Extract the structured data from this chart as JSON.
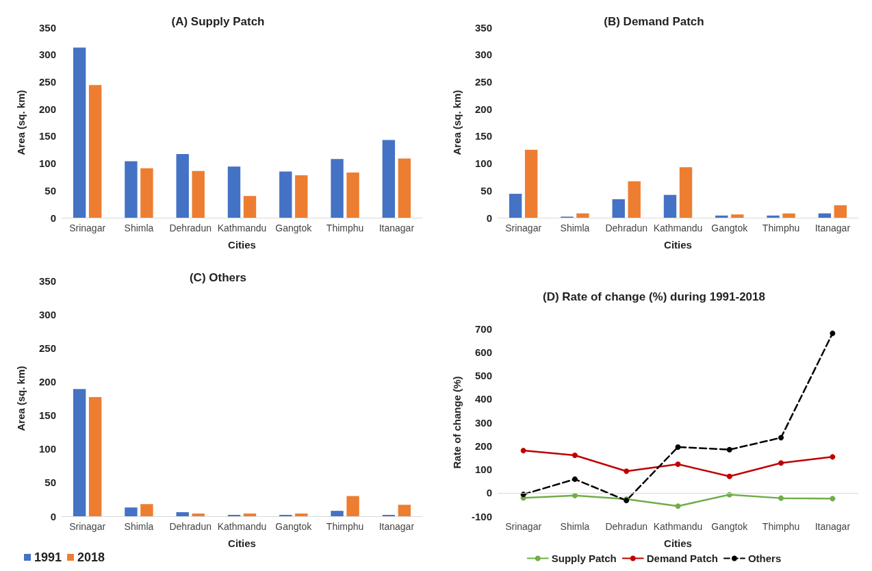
{
  "chart_data": [
    {
      "type": "bar",
      "title": "(A) Supply Patch",
      "xlabel": "Cities",
      "ylabel": "Area (sq. km)",
      "categories": [
        "Srinagar",
        "Shimla",
        "Dehradun",
        "Kathmandu",
        "Gangtok",
        "Thimphu",
        "Itanagar"
      ],
      "series": [
        {
          "color": "#4472c4",
          "values": [
            313,
            104,
            117,
            94,
            85,
            108,
            143
          ]
        },
        {
          "color": "#ed7d31",
          "values": [
            244,
            91,
            86,
            40,
            78,
            83,
            109
          ]
        }
      ],
      "ylim": [
        0,
        350
      ],
      "yticks": [
        0,
        50,
        100,
        150,
        200,
        250,
        300,
        350
      ],
      "grid": false,
      "legend": false
    },
    {
      "type": "bar",
      "title": "(B) Demand Patch",
      "xlabel": "Cities",
      "ylabel": "Area (sq. km)",
      "categories": [
        "Srinagar",
        "Shimla",
        "Dehradun",
        "Kathmandu",
        "Gangtok",
        "Thimphu",
        "Itanagar"
      ],
      "series": [
        {
          "color": "#4472c4",
          "values": [
            44,
            2,
            34,
            42,
            4,
            4,
            8
          ]
        },
        {
          "color": "#ed7d31",
          "values": [
            125,
            8,
            67,
            93,
            6,
            8,
            23
          ]
        }
      ],
      "ylim": [
        0,
        350
      ],
      "yticks": [
        0,
        50,
        100,
        150,
        200,
        250,
        300,
        350
      ],
      "grid": false,
      "legend": false
    },
    {
      "type": "bar",
      "title": "(C) Others",
      "xlabel": "Cities",
      "ylabel": "Area (sq. km)",
      "categories": [
        "Srinagar",
        "Shimla",
        "Dehradun",
        "Kathmandu",
        "Gangtok",
        "Thimphu",
        "Itanagar"
      ],
      "series": [
        {
          "name": "1991",
          "color": "#4472c4",
          "values": [
            189,
            13,
            6,
            2,
            2,
            8,
            2
          ]
        },
        {
          "name": "2018",
          "color": "#ed7d31",
          "values": [
            177,
            18,
            4,
            4,
            4,
            30,
            17
          ]
        }
      ],
      "ylim": [
        0,
        350
      ],
      "yticks": [
        0,
        50,
        100,
        150,
        200,
        250,
        300,
        350
      ],
      "grid": false,
      "legend": "bottom left"
    },
    {
      "type": "line",
      "title": "(D) Rate of change (%) during 1991-2018",
      "xlabel": "Cities",
      "ylabel": "Rate of change (%)",
      "categories": [
        "Srinagar",
        "Shimla",
        "Dehradun",
        "Kathmandu",
        "Gangtok",
        "Thimphu",
        "Itanagar"
      ],
      "series": [
        {
          "name": "Supply Patch",
          "color": "#70ad47",
          "line_style": "solid",
          "values": [
            -22,
            -12,
            -27,
            -57,
            -8,
            -23,
            -25
          ]
        },
        {
          "name": "Demand Patch",
          "color": "#c00000",
          "line_style": "solid",
          "values": [
            180,
            160,
            92,
            122,
            70,
            127,
            153
          ]
        },
        {
          "name": "Others",
          "color": "#000000",
          "line_style": "dashed",
          "values": [
            -7,
            58,
            -33,
            195,
            184,
            235,
            680
          ]
        }
      ],
      "ylim": [
        -100,
        700
      ],
      "yticks": [
        -100,
        0,
        100,
        200,
        300,
        400,
        500,
        600,
        700
      ],
      "ref_lines": [
        {
          "axis": "y",
          "value": 0,
          "color": "#d9d9d9"
        }
      ],
      "grid": false,
      "legend": "bottom",
      "marker": "circle"
    }
  ]
}
